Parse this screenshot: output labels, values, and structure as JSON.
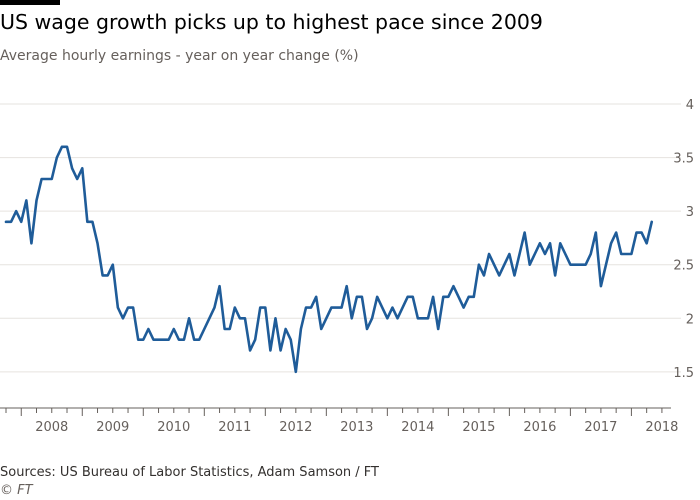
{
  "header": {
    "title": "US wage growth picks up to highest pace since 2009",
    "subtitle": "Average hourly earnings - year on year change (%)"
  },
  "footer": {
    "source": "Sources: US Bureau of Labor Statistics, Adam Samson / FT",
    "credit": "© FT"
  },
  "colors": {
    "line": "#1f5c99",
    "grid": "#e6e3df",
    "axis": "#66605c"
  },
  "chart_data": {
    "type": "line",
    "title": "US wage growth picks up to highest pace since 2009",
    "subtitle": "Average hourly earnings - year on year change (%)",
    "xlabel": "",
    "ylabel": "",
    "ylim": [
      1.2,
      4
    ],
    "xlim": [
      "2007-10",
      "2018-08"
    ],
    "grid": "horizontal",
    "y_ticks": [
      "1.5",
      "2",
      "2.5",
      "3",
      "3.5",
      "4"
    ],
    "x_ticks": [
      "2008",
      "2009",
      "2010",
      "2011",
      "2012",
      "2013",
      "2014",
      "2015",
      "2016",
      "2017",
      "2018"
    ],
    "series": [
      {
        "start": "2007-10",
        "frequency": "monthly",
        "values": [
          2.9,
          2.9,
          3.0,
          2.9,
          3.1,
          2.7,
          3.1,
          3.3,
          3.3,
          3.3,
          3.5,
          3.6,
          3.6,
          3.4,
          3.3,
          3.4,
          2.9,
          2.9,
          2.7,
          2.4,
          2.4,
          2.5,
          2.1,
          2.0,
          2.1,
          2.1,
          1.8,
          1.8,
          1.9,
          1.8,
          1.8,
          1.8,
          1.8,
          1.9,
          1.8,
          1.8,
          2.0,
          1.8,
          1.8,
          1.9,
          2.0,
          2.1,
          2.3,
          1.9,
          1.9,
          2.1,
          2.0,
          2.0,
          1.7,
          1.8,
          2.1,
          2.1,
          1.7,
          2.0,
          1.7,
          1.9,
          1.8,
          1.5,
          1.9,
          2.1,
          2.1,
          2.2,
          1.9,
          2.0,
          2.1,
          2.1,
          2.1,
          2.3,
          2.0,
          2.2,
          2.2,
          1.9,
          2.0,
          2.2,
          2.1,
          2.0,
          2.1,
          2.0,
          2.1,
          2.2,
          2.2,
          2.0,
          2.0,
          2.0,
          2.2,
          1.9,
          2.2,
          2.2,
          2.3,
          2.2,
          2.1,
          2.2,
          2.2,
          2.5,
          2.4,
          2.6,
          2.5,
          2.4,
          2.5,
          2.6,
          2.4,
          2.6,
          2.8,
          2.5,
          2.6,
          2.7,
          2.6,
          2.7,
          2.4,
          2.7,
          2.6,
          2.5,
          2.5,
          2.5,
          2.5,
          2.6,
          2.8,
          2.3,
          2.5,
          2.7,
          2.8,
          2.6,
          2.6,
          2.6,
          2.8,
          2.8,
          2.7,
          2.9
        ]
      }
    ]
  }
}
